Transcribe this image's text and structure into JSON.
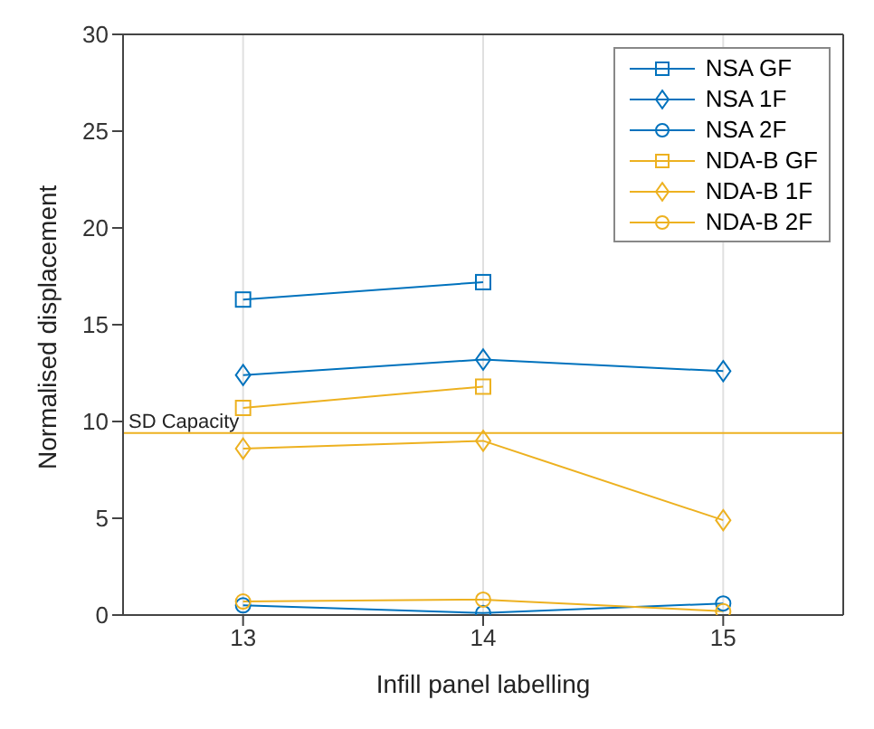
{
  "chart_data": {
    "type": "line",
    "xlabel": "Infill panel labelling",
    "ylabel": "Normalised displacement",
    "x": [
      13,
      14,
      15
    ],
    "xlim": [
      12.5,
      15.5
    ],
    "xticks": [
      13,
      14,
      15
    ],
    "ylim": [
      0,
      30
    ],
    "yticks": [
      0,
      5,
      10,
      15,
      20,
      25,
      30
    ],
    "grid": "x",
    "legend": "top right",
    "series": [
      {
        "name": "NSA GF",
        "color": "#0072bd",
        "marker": "square",
        "values": [
          16.3,
          17.2,
          null
        ]
      },
      {
        "name": "NSA 1F",
        "color": "#0072bd",
        "marker": "diamond",
        "values": [
          12.4,
          13.2,
          12.6
        ]
      },
      {
        "name": "NSA 2F",
        "color": "#0072bd",
        "marker": "circle",
        "values": [
          0.5,
          0.1,
          0.6
        ]
      },
      {
        "name": "NDA-B GF",
        "color": "#edb120",
        "marker": "square",
        "values": [
          10.7,
          11.8,
          null
        ]
      },
      {
        "name": "NDA-B 1F",
        "color": "#edb120",
        "marker": "diamond",
        "values": [
          8.6,
          9.0,
          4.9
        ]
      },
      {
        "name": "NDA-B 2F",
        "color": "#edb120",
        "marker": "circle",
        "values": [
          0.7,
          0.8,
          0.2
        ]
      }
    ],
    "ref_lines": [
      {
        "axis": "y",
        "value": 9.4,
        "label": "SD Capacity",
        "color": "#edb120"
      }
    ]
  }
}
